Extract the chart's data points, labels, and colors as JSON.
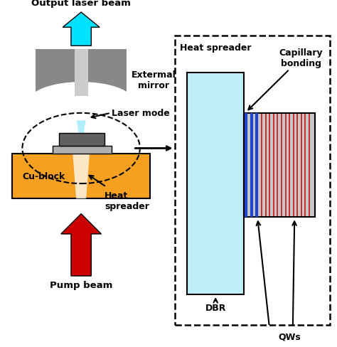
{
  "fig_width": 4.74,
  "fig_height": 4.89,
  "bg_color": "#ffffff",
  "labels": {
    "output_laser_beam": "Output laser beam",
    "external_mirror": "Extermal\nmirror",
    "laser_mode": "Laser mode",
    "cu_block": "Cu-block",
    "heat_spreader_left": "Heat\nspreader",
    "pump_beam": "Pump beam",
    "heat_spreader_right": "Heat spreader",
    "capillary_bonding": "Capillary\nbonding",
    "dbr": "DBR",
    "qws": "QWs"
  },
  "colors": {
    "cyan_arrow": "#00e0ff",
    "red_arrow": "#cc0000",
    "orange_block": "#f5a020",
    "gray_mirror": "#888888",
    "light_gray_chip": "#b0b0b0",
    "dark_gray_chip": "#606060",
    "cyan_beam": "#aaeeff",
    "heat_spreader_fill": "#c0eef8",
    "dbr_fill": "#c8c8c8",
    "blue_lines": "#2244cc",
    "red_lines": "#cc2020",
    "white": "#ffffff"
  }
}
